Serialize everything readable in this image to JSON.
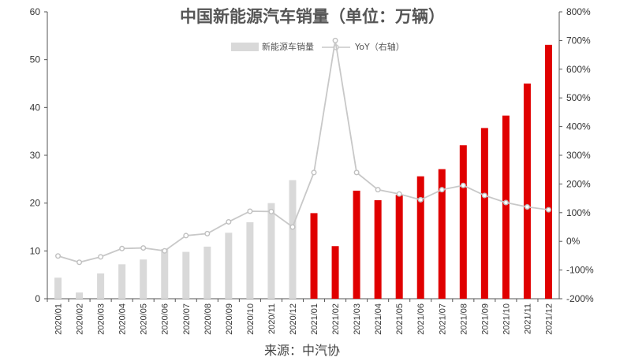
{
  "chart_data": {
    "type": "bar",
    "title": "中国新能源汽车销量（单位：万辆）",
    "source": "来源：中汽协",
    "categories": [
      "2020/01",
      "2020/02",
      "2020/03",
      "2020/04",
      "2020/05",
      "2020/06",
      "2020/07",
      "2020/08",
      "2020/09",
      "2020/10",
      "2020/11",
      "2020/12",
      "2021/01",
      "2021/02",
      "2021/03",
      "2021/04",
      "2021/05",
      "2021/06",
      "2021/07",
      "2021/08",
      "2021/09",
      "2021/10",
      "2021/11",
      "2021/12"
    ],
    "series": [
      {
        "name": "新能源车销量",
        "type": "bar",
        "axis": "left",
        "values": [
          4.4,
          1.3,
          5.3,
          7.2,
          8.2,
          10.4,
          9.8,
          10.9,
          13.8,
          16.0,
          20.0,
          24.8,
          17.9,
          11.0,
          22.6,
          20.6,
          21.7,
          25.6,
          27.1,
          32.1,
          35.7,
          38.3,
          45.0,
          53.1
        ],
        "colors": {
          "2020": "#d9d9d9",
          "2021": "#e00000"
        }
      },
      {
        "name": "YoY（右轴）",
        "type": "line",
        "axis": "right",
        "values": [
          -51,
          -73,
          -54,
          -25,
          -23,
          -33,
          20,
          27,
          68,
          105,
          104,
          50,
          240,
          700,
          240,
          180,
          165,
          145,
          180,
          195,
          160,
          135,
          120,
          110
        ]
      }
    ],
    "yleft": {
      "min": 0,
      "max": 60,
      "ticks": [
        0,
        10,
        20,
        30,
        40,
        50,
        60
      ]
    },
    "yright": {
      "min": -200,
      "max": 800,
      "ticks": [
        -200,
        -100,
        0,
        100,
        200,
        300,
        400,
        500,
        600,
        700,
        800
      ],
      "tick_labels": [
        "-200%",
        "-100%",
        "0%",
        "100%",
        "200%",
        "300%",
        "400%",
        "500%",
        "600%",
        "700%",
        "800%"
      ]
    },
    "legend": {
      "position": "top-center"
    },
    "grid": false
  }
}
